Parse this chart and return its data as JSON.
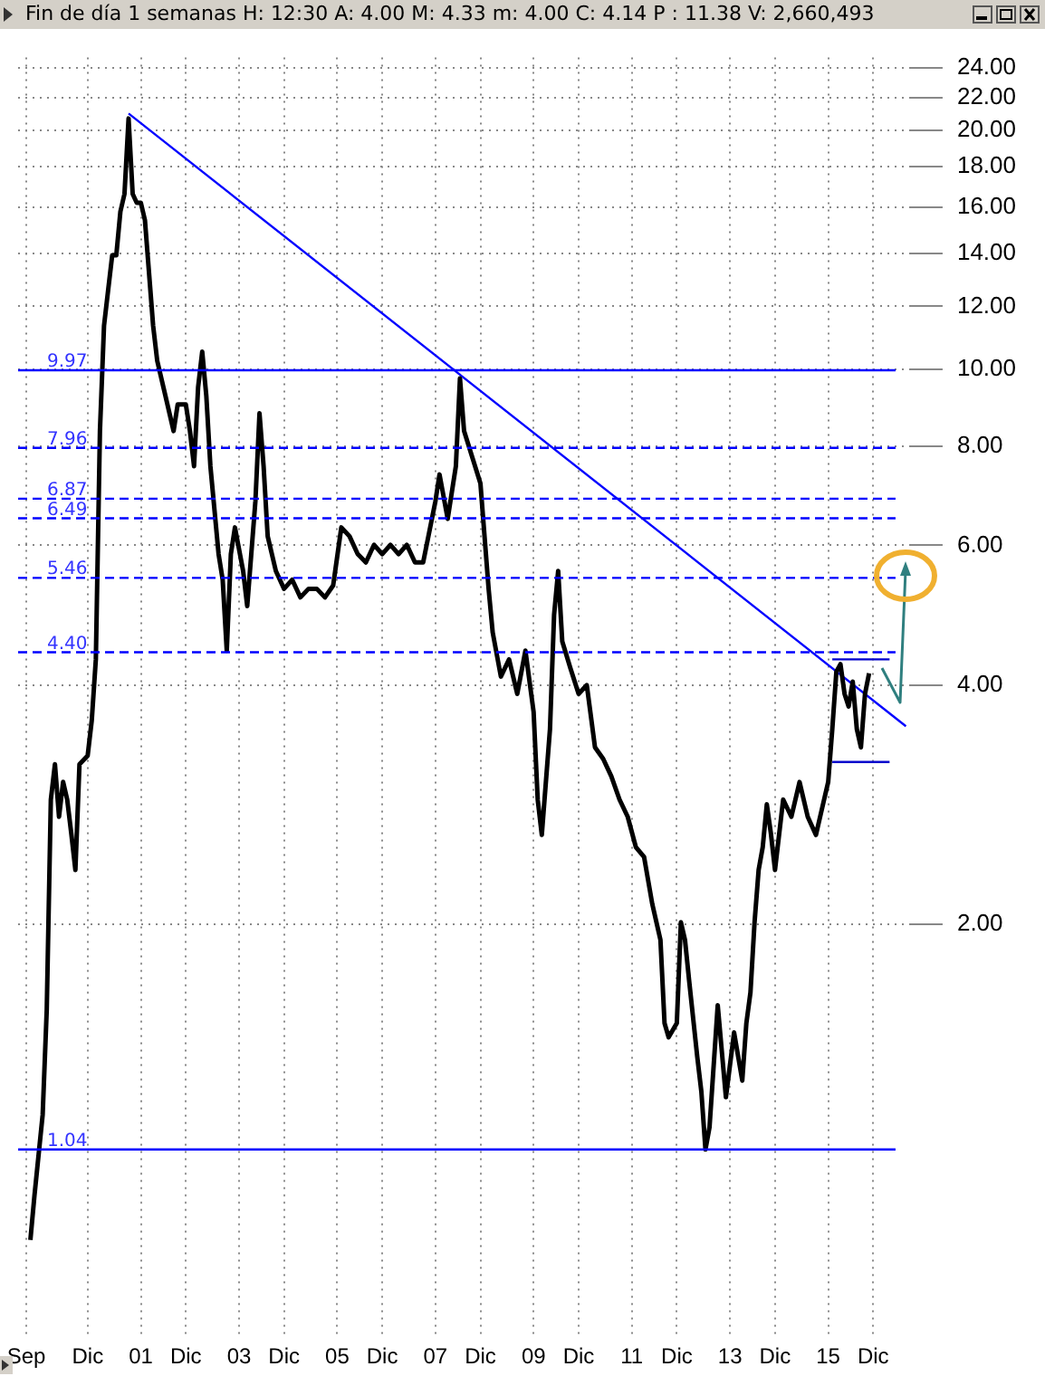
{
  "chart_data": {
    "type": "line",
    "title": "Fin de día 1 semanas  H: 12:30  A: 4.00  M: 4.33  m: 4.00  C: 4.14  P : 11.38  V: 2,660,493",
    "log": "y",
    "grid": true,
    "legend": false,
    "xlim": [
      "1998-07",
      "2016-09"
    ],
    "xticks": [
      {
        "value": "1998-09",
        "label": "Sep"
      },
      {
        "value": "1999-12",
        "label": "Dic"
      },
      {
        "value": "2001-01",
        "label": "01"
      },
      {
        "value": "2001-12",
        "label": "Dic"
      },
      {
        "value": "2003-01",
        "label": "03"
      },
      {
        "value": "2003-12",
        "label": "Dic"
      },
      {
        "value": "2005-01",
        "label": "05"
      },
      {
        "value": "2005-12",
        "label": "Dic"
      },
      {
        "value": "2007-01",
        "label": "07"
      },
      {
        "value": "2007-12",
        "label": "Dic"
      },
      {
        "value": "2009-01",
        "label": "09"
      },
      {
        "value": "2009-12",
        "label": "Dic"
      },
      {
        "value": "2011-01",
        "label": "11"
      },
      {
        "value": "2011-12",
        "label": "Dic"
      },
      {
        "value": "2013-01",
        "label": "13"
      },
      {
        "value": "2013-12",
        "label": "Dic"
      },
      {
        "value": "2015-01",
        "label": "15"
      },
      {
        "value": "2015-12",
        "label": "Dic"
      }
    ],
    "ylim": [
      0.61,
      24.7
    ],
    "yticks": [
      {
        "value": 2,
        "label": "2.00"
      },
      {
        "value": 4,
        "label": "4.00"
      },
      {
        "value": 6,
        "label": "6.00"
      },
      {
        "value": 8,
        "label": "8.00"
      },
      {
        "value": 10,
        "label": "10.00"
      },
      {
        "value": 12,
        "label": "12.00"
      },
      {
        "value": 14,
        "label": "14.00"
      },
      {
        "value": 16,
        "label": "16.00"
      },
      {
        "value": 18,
        "label": "18.00"
      },
      {
        "value": 20,
        "label": "20.00"
      },
      {
        "value": 22,
        "label": "22.00"
      },
      {
        "value": 24,
        "label": "24.00"
      }
    ],
    "series": [
      {
        "color": "#000000",
        "x": [
          "1998-10",
          "1998-11",
          "1999-01",
          "1999-02",
          "1999-03",
          "1999-04",
          "1999-05",
          "1999-06",
          "1999-07",
          "1999-08",
          "1999-09",
          "1999-10",
          "1999-12",
          "2000-01",
          "2000-02",
          "2000-03",
          "2000-04",
          "2000-05",
          "2000-06",
          "2000-07",
          "2000-08",
          "2000-09",
          "2000-10",
          "2000-11",
          "2000-12",
          "2001-01",
          "2001-02",
          "2001-04",
          "2001-05",
          "2001-07",
          "2001-09",
          "2001-10",
          "2001-12",
          "2002-01",
          "2002-02",
          "2002-03",
          "2002-04",
          "2002-05",
          "2002-06",
          "2002-08",
          "2002-09",
          "2002-10",
          "2002-11",
          "2002-12",
          "2003-02",
          "2003-03",
          "2003-05",
          "2003-06",
          "2003-07",
          "2003-08",
          "2003-10",
          "2003-12",
          "2004-02",
          "2004-04",
          "2004-06",
          "2004-08",
          "2004-10",
          "2004-12",
          "2005-02",
          "2005-04",
          "2005-06",
          "2005-08",
          "2005-10",
          "2005-12",
          "2006-02",
          "2006-04",
          "2006-06",
          "2006-08",
          "2006-10",
          "2007-01",
          "2007-02",
          "2007-04",
          "2007-06",
          "2007-07",
          "2007-08",
          "2007-10",
          "2007-12",
          "2008-02",
          "2008-03",
          "2008-05",
          "2008-07",
          "2008-09",
          "2008-11",
          "2009-01",
          "2009-02",
          "2009-03",
          "2009-05",
          "2009-06",
          "2009-07",
          "2009-08",
          "2009-10",
          "2009-12",
          "2010-02",
          "2010-04",
          "2010-06",
          "2010-08",
          "2010-10",
          "2010-12",
          "2011-02",
          "2011-04",
          "2011-06",
          "2011-08",
          "2011-09",
          "2011-10",
          "2011-12",
          "2012-01",
          "2012-02",
          "2012-03",
          "2012-05",
          "2012-06",
          "2012-07",
          "2012-08",
          "2012-10",
          "2012-12",
          "2013-02",
          "2013-04",
          "2013-05",
          "2013-06",
          "2013-07",
          "2013-08",
          "2013-09",
          "2013-10",
          "2013-11",
          "2013-12",
          "2014-02",
          "2014-04",
          "2014-06",
          "2014-08",
          "2014-10",
          "2014-12",
          "2015-01",
          "2015-02",
          "2015-03",
          "2015-04",
          "2015-05",
          "2015-06",
          "2015-07",
          "2015-08",
          "2015-09",
          "2015-10",
          "2015-11"
        ],
        "values": [
          0.8,
          0.91,
          1.15,
          1.56,
          2.87,
          3.18,
          2.73,
          3.02,
          2.87,
          2.6,
          2.34,
          3.18,
          3.26,
          3.61,
          4.31,
          8.36,
          11.35,
          12.57,
          13.92,
          13.92,
          15.8,
          16.63,
          20.7,
          16.63,
          16.21,
          16.21,
          15.41,
          11.35,
          10.25,
          9.26,
          8.36,
          9.03,
          9.03,
          8.36,
          7.55,
          9.5,
          10.52,
          9.26,
          7.55,
          5.85,
          5.43,
          4.42,
          5.85,
          6.32,
          5.57,
          5.03,
          6.82,
          8.8,
          7.55,
          6.16,
          5.57,
          5.29,
          5.43,
          5.16,
          5.29,
          5.29,
          5.16,
          5.34,
          6.32,
          6.16,
          5.85,
          5.71,
          6.01,
          5.85,
          6.01,
          5.85,
          6.01,
          5.71,
          5.71,
          6.82,
          7.37,
          6.48,
          7.55,
          9.74,
          8.36,
          7.75,
          7.18,
          5.29,
          4.66,
          4.1,
          4.31,
          3.9,
          4.42,
          3.7,
          2.87,
          2.59,
          3.52,
          4.9,
          5.57,
          4.54,
          4.2,
          3.9,
          4.0,
          3.34,
          3.23,
          3.07,
          2.87,
          2.73,
          2.5,
          2.43,
          2.12,
          1.91,
          1.5,
          1.44,
          1.5,
          2.01,
          1.91,
          1.7,
          1.36,
          1.23,
          1.04,
          1.11,
          1.58,
          1.21,
          1.46,
          1.27,
          1.5,
          1.64,
          2.01,
          2.34,
          2.5,
          2.83,
          2.6,
          2.34,
          2.87,
          2.73,
          3.02,
          2.73,
          2.59,
          2.87,
          3.02,
          3.52,
          4.16,
          4.25,
          3.9,
          3.76,
          4.04,
          3.52,
          3.34,
          3.9,
          4.14
        ]
      },
      {
        "type": "line",
        "color": "#0000ff",
        "x": [
          "2000-10",
          "2016-08"
        ],
        "values": [
          21.0,
          3.55
        ]
      },
      {
        "type": "line",
        "color": "#0000cc",
        "x": [
          "2015-02",
          "2016-04"
        ],
        "values": [
          4.31,
          4.31
        ]
      },
      {
        "type": "line",
        "color": "#0000cc",
        "x": [
          "2015-02",
          "2016-04"
        ],
        "values": [
          3.2,
          3.2
        ]
      }
    ],
    "ref_lines": [
      {
        "axis": "y",
        "value": 9.97,
        "label": "9.97",
        "color": "#0000ff",
        "line_style": "solid"
      },
      {
        "axis": "y",
        "value": 7.96,
        "label": "7.96",
        "color": "#0000ff",
        "line_style": "dashed"
      },
      {
        "axis": "y",
        "value": 6.87,
        "label": "6.87",
        "color": "#0000ff",
        "line_style": "dashed"
      },
      {
        "axis": "y",
        "value": 6.49,
        "label": "6.49",
        "color": "#0000ff",
        "line_style": "dashed"
      },
      {
        "axis": "y",
        "value": 5.46,
        "label": "5.46",
        "color": "#0000ff",
        "line_style": "dashed"
      },
      {
        "axis": "y",
        "value": 4.4,
        "label": "4.40",
        "color": "#0000ff",
        "line_style": "dashed"
      },
      {
        "axis": "y",
        "value": 1.04,
        "label": "1.04",
        "color": "#0000ff",
        "line_style": "solid"
      }
    ]
  }
}
